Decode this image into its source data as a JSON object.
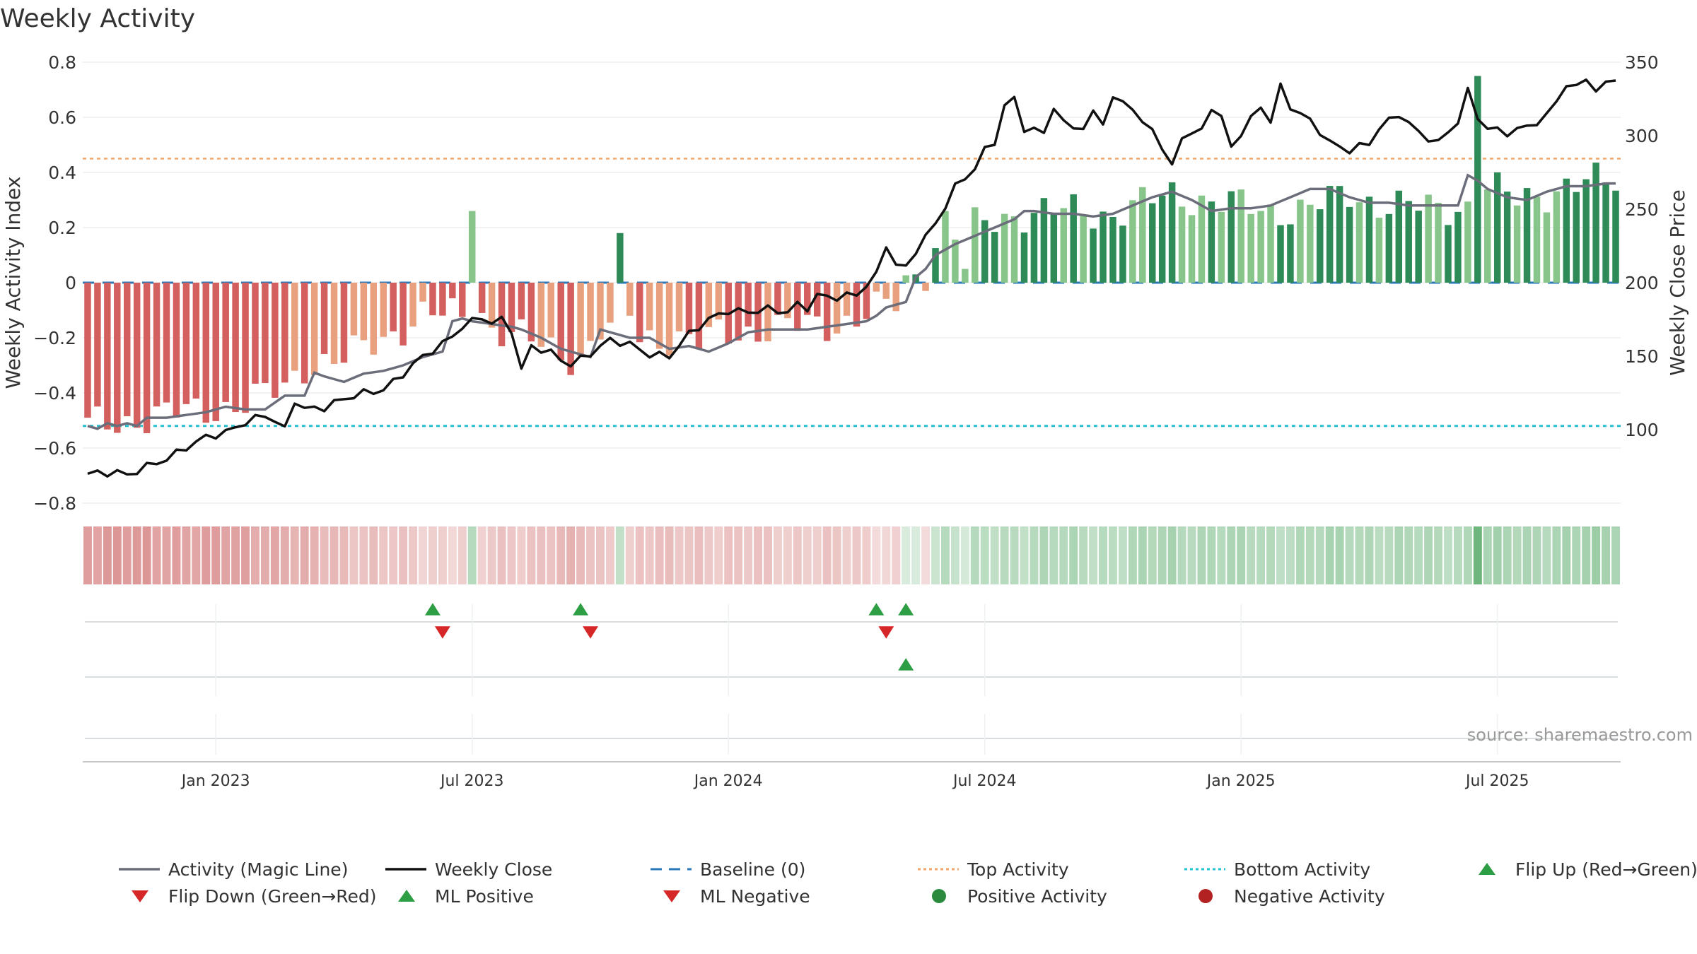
{
  "chart_data": {
    "type": "bar",
    "title": "Weekly Activity",
    "source": "source: sharemaestro.com",
    "weeks_start": "2022-10-03",
    "week_count": 156,
    "y_left": {
      "label": "Weekly Activity Index",
      "min": -0.8,
      "max": 0.8,
      "ticks": [
        -0.8,
        -0.6,
        -0.4,
        -0.2,
        0,
        0.2,
        0.4,
        0.6,
        0.8
      ],
      "tick_labels": [
        "−0.8",
        "−0.6",
        "−0.4",
        "−0.2",
        "0",
        "0.2",
        "0.4",
        "0.6",
        "0.8"
      ]
    },
    "y_right": {
      "label": "Weekly Close Price",
      "min": 50,
      "max": 350,
      "ticks": [
        100,
        150,
        200,
        250,
        300,
        350
      ],
      "tick_labels": [
        "100",
        "150",
        "200",
        "250",
        "300",
        "350"
      ]
    },
    "x_ticks": [
      {
        "label": "Jan 2023",
        "week": 13
      },
      {
        "label": "Jul 2023",
        "week": 39
      },
      {
        "label": "Jan 2024",
        "week": 65
      },
      {
        "label": "Jul 2024",
        "week": 91
      },
      {
        "label": "Jan 2025",
        "week": 117
      },
      {
        "label": "Jul 2025",
        "week": 143
      }
    ],
    "reference_lines": {
      "baseline": 0,
      "top_activity": 0.45,
      "bottom_activity": -0.52
    },
    "activity_shape": [
      [
        0,
        -0.52
      ],
      [
        4,
        -0.5
      ],
      [
        8,
        -0.48
      ],
      [
        12,
        -0.46
      ],
      [
        16,
        -0.44
      ],
      [
        20,
        -0.38
      ],
      [
        22,
        -0.3
      ],
      [
        26,
        -0.28
      ],
      [
        30,
        -0.2
      ],
      [
        34,
        -0.12
      ],
      [
        37,
        -0.12
      ],
      [
        40,
        -0.15
      ],
      [
        44,
        -0.2
      ],
      [
        48,
        -0.26
      ],
      [
        50,
        -0.27
      ],
      [
        52,
        -0.17
      ],
      [
        56,
        -0.2
      ],
      [
        60,
        -0.2
      ],
      [
        62,
        -0.22
      ],
      [
        64,
        -0.19
      ],
      [
        68,
        -0.17
      ],
      [
        72,
        -0.16
      ],
      [
        76,
        -0.15
      ],
      [
        80,
        -0.1
      ],
      [
        82,
        -0.08
      ],
      [
        83,
        0.0
      ],
      [
        84,
        0.1
      ],
      [
        86,
        0.15
      ],
      [
        90,
        0.2
      ],
      [
        94,
        0.25
      ],
      [
        98,
        0.26
      ],
      [
        104,
        0.25
      ],
      [
        110,
        0.32
      ],
      [
        115,
        0.29
      ],
      [
        120,
        0.26
      ],
      [
        124,
        0.27
      ],
      [
        128,
        0.32
      ],
      [
        132,
        0.28
      ],
      [
        136,
        0.27
      ],
      [
        140,
        0.28
      ],
      [
        140,
        0.37
      ],
      [
        145,
        0.3
      ],
      [
        150,
        0.35
      ],
      [
        155,
        0.37
      ]
    ],
    "magic_line": [
      [
        0,
        -0.52
      ],
      [
        1,
        -0.53
      ],
      [
        2,
        -0.51
      ],
      [
        3,
        -0.52
      ],
      [
        4,
        -0.51
      ],
      [
        5,
        -0.52
      ],
      [
        6,
        -0.49
      ],
      [
        8,
        -0.49
      ],
      [
        10,
        -0.48
      ],
      [
        12,
        -0.47
      ],
      [
        13,
        -0.46
      ],
      [
        14,
        -0.45
      ],
      [
        16,
        -0.46
      ],
      [
        18,
        -0.46
      ],
      [
        20,
        -0.41
      ],
      [
        22,
        -0.41
      ],
      [
        22.5,
        -0.32
      ],
      [
        24,
        -0.34
      ],
      [
        26,
        -0.36
      ],
      [
        28,
        -0.33
      ],
      [
        30,
        -0.32
      ],
      [
        32,
        -0.3
      ],
      [
        34,
        -0.27
      ],
      [
        36,
        -0.25
      ],
      [
        37,
        -0.14
      ],
      [
        38,
        -0.13
      ],
      [
        39,
        -0.14
      ],
      [
        41,
        -0.15
      ],
      [
        43,
        -0.16
      ],
      [
        44,
        -0.17
      ],
      [
        46,
        -0.2
      ],
      [
        48,
        -0.24
      ],
      [
        50,
        -0.26
      ],
      [
        51,
        -0.27
      ],
      [
        52,
        -0.17
      ],
      [
        53,
        -0.18
      ],
      [
        55,
        -0.2
      ],
      [
        57,
        -0.2
      ],
      [
        59,
        -0.24
      ],
      [
        61,
        -0.23
      ],
      [
        63,
        -0.25
      ],
      [
        65,
        -0.22
      ],
      [
        67,
        -0.18
      ],
      [
        69,
        -0.17
      ],
      [
        71,
        -0.17
      ],
      [
        73,
        -0.17
      ],
      [
        75,
        -0.16
      ],
      [
        77,
        -0.15
      ],
      [
        79,
        -0.14
      ],
      [
        80,
        -0.12
      ],
      [
        81,
        -0.09
      ],
      [
        82,
        -0.08
      ],
      [
        83,
        -0.07
      ],
      [
        84,
        0.02
      ],
      [
        85,
        0.05
      ],
      [
        86,
        0.1
      ],
      [
        88,
        0.14
      ],
      [
        90,
        0.17
      ],
      [
        92,
        0.2
      ],
      [
        94,
        0.23
      ],
      [
        95,
        0.26
      ],
      [
        96,
        0.26
      ],
      [
        98,
        0.25
      ],
      [
        100,
        0.25
      ],
      [
        102,
        0.24
      ],
      [
        104,
        0.25
      ],
      [
        106,
        0.28
      ],
      [
        108,
        0.31
      ],
      [
        110,
        0.33
      ],
      [
        112,
        0.3
      ],
      [
        114,
        0.26
      ],
      [
        116,
        0.27
      ],
      [
        118,
        0.27
      ],
      [
        120,
        0.28
      ],
      [
        122,
        0.31
      ],
      [
        124,
        0.34
      ],
      [
        126,
        0.34
      ],
      [
        128,
        0.31
      ],
      [
        130,
        0.29
      ],
      [
        132,
        0.29
      ],
      [
        134,
        0.28
      ],
      [
        136,
        0.28
      ],
      [
        138,
        0.28
      ],
      [
        139,
        0.28
      ],
      [
        140,
        0.39
      ],
      [
        141,
        0.37
      ],
      [
        142,
        0.34
      ],
      [
        144,
        0.31
      ],
      [
        146,
        0.3
      ],
      [
        148,
        0.33
      ],
      [
        150,
        0.35
      ],
      [
        152,
        0.35
      ],
      [
        154,
        0.36
      ],
      [
        155,
        0.36
      ]
    ],
    "close_shape": [
      [
        0,
        70
      ],
      [
        3,
        71
      ],
      [
        4,
        69
      ],
      [
        6,
        75
      ],
      [
        8,
        80
      ],
      [
        10,
        88
      ],
      [
        12,
        95
      ],
      [
        14,
        98
      ],
      [
        16,
        105
      ],
      [
        18,
        110
      ],
      [
        19,
        106
      ],
      [
        20,
        100
      ],
      [
        21,
        120
      ],
      [
        22,
        114
      ],
      [
        24,
        115
      ],
      [
        26,
        121
      ],
      [
        28,
        125
      ],
      [
        30,
        127
      ],
      [
        32,
        138
      ],
      [
        34,
        150
      ],
      [
        36,
        158
      ],
      [
        38,
        170
      ],
      [
        40,
        177
      ],
      [
        41,
        172
      ],
      [
        42,
        175
      ],
      [
        43,
        168
      ],
      [
        44,
        140
      ],
      [
        45,
        157
      ],
      [
        47,
        152
      ],
      [
        49,
        144
      ],
      [
        51,
        152
      ],
      [
        53,
        161
      ],
      [
        55,
        158
      ],
      [
        57,
        151
      ],
      [
        59,
        150
      ],
      [
        61,
        165
      ],
      [
        63,
        175
      ],
      [
        65,
        181
      ],
      [
        67,
        180
      ],
      [
        69,
        182
      ],
      [
        71,
        180
      ],
      [
        72,
        185
      ],
      [
        73,
        183
      ],
      [
        74,
        191
      ],
      [
        76,
        190
      ],
      [
        78,
        192
      ],
      [
        80,
        205
      ],
      [
        81,
        226
      ],
      [
        82,
        212
      ],
      [
        83,
        210
      ],
      [
        84,
        222
      ],
      [
        86,
        240
      ],
      [
        88,
        265
      ],
      [
        90,
        278
      ],
      [
        91,
        290
      ],
      [
        92,
        296
      ],
      [
        93,
        320
      ],
      [
        94,
        325
      ],
      [
        95,
        305
      ],
      [
        97,
        302
      ],
      [
        98,
        320
      ],
      [
        99,
        308
      ],
      [
        101,
        305
      ],
      [
        102,
        315
      ],
      [
        103,
        310
      ],
      [
        104,
        325
      ],
      [
        106,
        320
      ],
      [
        107,
        307
      ],
      [
        108,
        305
      ],
      [
        109,
        292
      ],
      [
        110,
        278
      ],
      [
        111,
        300
      ],
      [
        113,
        303
      ],
      [
        114,
        320
      ],
      [
        115,
        312
      ],
      [
        116,
        292
      ],
      [
        117,
        302
      ],
      [
        119,
        320
      ],
      [
        120,
        310
      ],
      [
        121,
        333
      ],
      [
        122,
        320
      ],
      [
        124,
        310
      ],
      [
        125,
        303
      ],
      [
        126,
        295
      ],
      [
        128,
        290
      ],
      [
        130,
        295
      ],
      [
        131,
        305
      ],
      [
        133,
        315
      ],
      [
        135,
        302
      ],
      [
        137,
        295
      ],
      [
        139,
        310
      ],
      [
        140,
        330
      ],
      [
        141,
        313
      ],
      [
        142,
        305
      ],
      [
        144,
        302
      ],
      [
        146,
        306
      ],
      [
        148,
        313
      ],
      [
        150,
        335
      ],
      [
        151,
        332
      ],
      [
        152,
        340
      ],
      [
        153,
        330
      ],
      [
        154,
        335
      ],
      [
        155,
        340
      ]
    ],
    "overrides": [
      [
        39,
        0.26
      ],
      [
        54,
        0.18
      ],
      [
        40,
        -0.11
      ],
      [
        55,
        -0.12
      ],
      [
        84,
        0.03
      ],
      [
        85,
        -0.03
      ],
      [
        87,
        0.26
      ],
      [
        87,
        0.26
      ],
      [
        89,
        0.05
      ],
      [
        141,
        0.75
      ]
    ],
    "flip_up_weeks": [
      35,
      50,
      80,
      83
    ],
    "flip_down_weeks": [
      36,
      51,
      81
    ],
    "ml_positive_weeks": [
      83
    ],
    "ml_negative_weeks": []
  },
  "legend": [
    {
      "label": "Activity (Magic Line)",
      "symbol": "line",
      "color": "#6b6e7a"
    },
    {
      "label": "Weekly Close",
      "symbol": "line",
      "color": "#111111"
    },
    {
      "label": "Baseline (0)",
      "symbol": "dash",
      "color": "#2a78b8"
    },
    {
      "label": "Top Activity",
      "symbol": "dot-line",
      "color": "#f0a66a"
    },
    {
      "label": "Bottom Activity",
      "symbol": "dot-line",
      "color": "#22c0d0"
    },
    {
      "label": "Flip Up (Red→Green)",
      "symbol": "triangle-up",
      "color": "#2e9e44"
    },
    {
      "label": "Flip Down (Green→Red)",
      "symbol": "triangle-down",
      "color": "#d62728"
    },
    {
      "label": "ML Positive",
      "symbol": "triangle-up",
      "color": "#2e9e44"
    },
    {
      "label": "ML Negative",
      "symbol": "triangle-down",
      "color": "#d62728"
    },
    {
      "label": "Positive Activity",
      "symbol": "circle",
      "color": "#2b8a3e"
    },
    {
      "label": "Negative Activity",
      "symbol": "circle",
      "color": "#b22222"
    }
  ],
  "colors": {
    "pos_dark": "#2e8b57",
    "pos_light": "#88c58a",
    "neg_dark": "#d35f5f",
    "neg_light": "#e8a07e",
    "magic_line": "#6b6e7a",
    "close": "#111111",
    "baseline": "#2a78b8",
    "top": "#f0a66a",
    "bottom": "#22c0d0",
    "grid": "#eeeeee",
    "axis_text": "#333333",
    "source": "#999999",
    "up": "#2e9e44",
    "down": "#d62728"
  }
}
